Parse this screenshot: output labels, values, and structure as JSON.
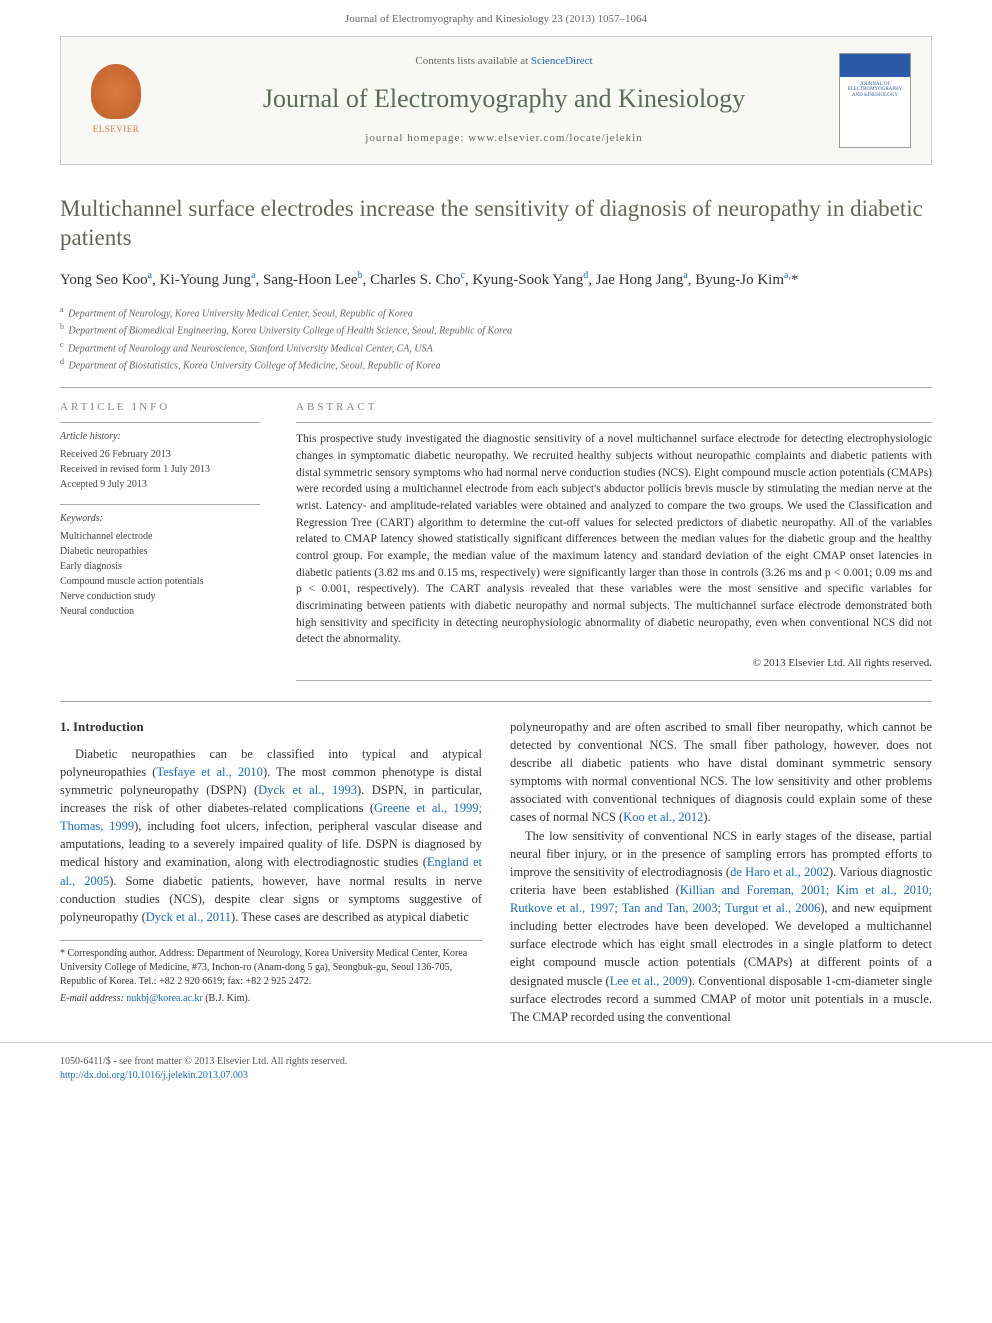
{
  "header_citation": "Journal of Electromyography and Kinesiology 23 (2013) 1057–1064",
  "journal_box": {
    "contents_prefix": "Contents lists available at ",
    "contents_link": "ScienceDirect",
    "journal_name": "Journal of Electromyography and Kinesiology",
    "homepage_prefix": "journal homepage: ",
    "homepage_url": "www.elsevier.com/locate/jelekin",
    "elsevier_label": "ELSEVIER",
    "cover_thumb_text": "JOURNAL OF ELECTROMYOGRAPHY AND KINESIOLOGY"
  },
  "title": "Multichannel surface electrodes increase the sensitivity of diagnosis of neuropathy in diabetic patients",
  "authors_html": "Yong Seo Koo<sup>a</sup>, Ki-Young Jung<sup>a</sup>, Sang-Hoon Lee<sup>b</sup>, Charles S. Cho<sup>c</sup>, Kyung-Sook Yang<sup>d</sup>, Jae Hong Jang<sup>a</sup>, Byung-Jo Kim<sup>a,</sup><span class='ast'>*</span>",
  "affiliations": [
    "a|Department of Neurology, Korea University Medical Center, Seoul, Republic of Korea",
    "b|Department of Biomedical Engineering, Korea University College of Health Science, Seoul, Republic of Korea",
    "c|Department of Neurology and Neuroscience, Stanford University Medical Center, CA, USA",
    "d|Department of Biostatistics, Korea University College of Medicine, Seoul, Republic of Korea"
  ],
  "article_info": {
    "heading": "ARTICLE INFO",
    "history_label": "Article history:",
    "received": "Received 26 February 2013",
    "revised": "Received in revised form 1 July 2013",
    "accepted": "Accepted 9 July 2013",
    "keywords_label": "Keywords:",
    "keywords": [
      "Multichannel electrode",
      "Diabetic neuropathies",
      "Early diagnosis",
      "Compound muscle action potentials",
      "Nerve conduction study",
      "Neural conduction"
    ]
  },
  "abstract": {
    "heading": "ABSTRACT",
    "text": "This prospective study investigated the diagnostic sensitivity of a novel multichannel surface electrode for detecting electrophysiologic changes in symptomatic diabetic neuropathy. We recruited healthy subjects without neuropathic complaints and diabetic patients with distal symmetric sensory symptoms who had normal nerve conduction studies (NCS). Eight compound muscle action potentials (CMAPs) were recorded using a multichannel electrode from each subject's abductor pollicis brevis muscle by stimulating the median nerve at the wrist. Latency- and amplitude-related variables were obtained and analyzed to compare the two groups. We used the Classification and Regression Tree (CART) algorithm to determine the cut-off values for selected predictors of diabetic neuropathy. All of the variables related to CMAP latency showed statistically significant differences between the median values for the diabetic group and the healthy control group. For example, the median value of the maximum latency and standard deviation of the eight CMAP onset latencies in diabetic patients (3.82 ms and 0.15 ms, respectively) were significantly larger than those in controls (3.26 ms and p < 0.001; 0.09 ms and p < 0.001, respectively). The CART analysis revealed that these variables were the most sensitive and specific variables for discriminating between patients with diabetic neuropathy and normal subjects. The multichannel surface electrode demonstrated both high sensitivity and specificity in detecting neurophysiologic abnormality of diabetic neuropathy, even when conventional NCS did not detect the abnormality.",
    "copyright": "© 2013 Elsevier Ltd. All rights reserved."
  },
  "intro": {
    "heading": "1. Introduction",
    "p1_pre": "Diabetic neuropathies can be classified into typical and atypical polyneuropathies (",
    "p1_c1": "Tesfaye et al., 2010",
    "p1_a": "). The most common phenotype is distal symmetric polyneuropathy (DSPN) (",
    "p1_c2": "Dyck et al., 1993",
    "p1_b": "). DSPN, in particular, increases the risk of other diabetes-related complications (",
    "p1_c3": "Greene et al., 1999; Thomas, 1999",
    "p1_c": "), including foot ulcers, infection, peripheral vascular disease and amputations, leading to a severely impaired quality of life. DSPN is diagnosed by medical history and examination, along with electrodiagnostic studies (",
    "p1_c4": "England et al., 2005",
    "p1_d": "). Some diabetic patients, however, have normal results in nerve conduction studies (NCS), despite clear signs or symptoms suggestive of polyneuropathy (",
    "p1_c5": "Dyck et al., 2011",
    "p1_e": "). These cases are described as atypical diabetic",
    "p2_a": "polyneuropathy and are often ascribed to small fiber neuropathy, which cannot be detected by conventional NCS. The small fiber pathology, however, does not describe all diabetic patients who have distal dominant symmetric sensory symptoms with normal conventional NCS. The low sensitivity and other problems associated with conventional techniques of diagnosis could explain some of these cases of normal NCS (",
    "p2_c1": "Koo et al., 2012",
    "p2_b": ").",
    "p3_a": "The low sensitivity of conventional NCS in early stages of the disease, partial neural fiber injury, or in the presence of sampling errors has prompted efforts to improve the sensitivity of electrodiagnosis (",
    "p3_c1": "de Haro et al., 2002",
    "p3_b": "). Various diagnostic criteria have been established (",
    "p3_c2": "Killian and Foreman, 2001; Kim et al., 2010; Rutkove et al., 1997; Tan and Tan, 2003; Turgut et al., 2006",
    "p3_c": "), and new equipment including better electrodes have been developed. We developed a multichannel surface electrode which has eight small electrodes in a single platform to detect eight compound muscle action potentials (CMAPs) at different points of a designated muscle (",
    "p3_c3": "Lee et al., 2009",
    "p3_d": "). Conventional disposable 1-cm-diameter single surface electrodes record a summed CMAP of motor unit potentials in a muscle. The CMAP recorded using the conventional"
  },
  "footnote": {
    "corr_label": "* Corresponding author. Address: Department of Neurology, Korea University Medical Center, Korea University College of Medicine, #73, Inchon-ro (Anam-dong 5 ga), Seongbuk-gu, Seoul 136-705, Republic of Korea. Tel.: +82 2 920 6619; fax: +82 2 925 2472.",
    "email_label": "E-mail address: ",
    "email_addr": "nukbj@korea.ac.kr",
    "email_suffix": " (B.J. Kim)."
  },
  "footer": {
    "left_line1": "1050-6411/$ - see front matter © 2013 Elsevier Ltd. All rights reserved.",
    "left_line2": "http://dx.doi.org/10.1016/j.jelekin.2013.07.003"
  },
  "colors": {
    "link": "#1a6cb8",
    "heading_muted": "#656557",
    "journal_green": "#5b6b54",
    "elsevier_orange": "#d97b3e"
  }
}
